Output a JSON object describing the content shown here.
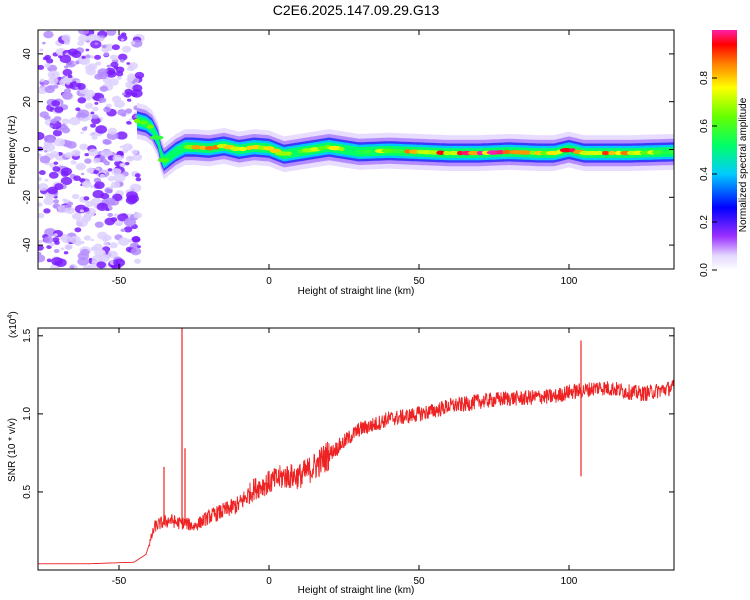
{
  "title": "C2E6.2025.147.09.29.G13",
  "chart_data": [
    {
      "type": "heatmap",
      "xlabel": "Height of straight line (km)",
      "ylabel": "Frequency (Hz)",
      "xlim": [
        -77,
        135
      ],
      "ylim": [
        -50,
        50
      ],
      "xticks": [
        -50,
        0,
        50,
        100
      ],
      "yticks": [
        -40,
        -20,
        0,
        20,
        40
      ],
      "colorbar": {
        "label": "Normalized spectral amplitude",
        "range": [
          0,
          1
        ],
        "ticks": [
          "0.0",
          "0.2",
          "0.4",
          "0.6",
          "0.8"
        ],
        "colors": [
          "#e6e6fa",
          "#9b30ff",
          "#0000ff",
          "#00ffff",
          "#00ff00",
          "#ffff00",
          "#ff0000",
          "#ff00ff"
        ]
      },
      "noise_region_x": [
        -77,
        -43
      ],
      "ridge": {
        "x": [
          -44,
          -41,
          -39,
          -37,
          -36,
          -35,
          -33,
          -31,
          -28,
          -25,
          -20,
          -15,
          -10,
          -5,
          0,
          5,
          10,
          15,
          20,
          30,
          40,
          50,
          60,
          70,
          80,
          90,
          95,
          100,
          105,
          110,
          120,
          135
        ],
        "freq": [
          12,
          11,
          9,
          4,
          -2,
          -5,
          -3,
          -1,
          1,
          1,
          0.5,
          1.5,
          0,
          1,
          0.5,
          -2,
          -1,
          0,
          1,
          -1,
          -0.5,
          -1,
          -1.5,
          -1.5,
          -1,
          -1.5,
          -1.5,
          0,
          -1.5,
          -1.5,
          -1.5,
          -1
        ],
        "amplitude": [
          0.7,
          0.85,
          0.6,
          0.7,
          0.45,
          0.75,
          0.5,
          0.45,
          0.6,
          0.75,
          0.9,
          0.75,
          0.7,
          0.85,
          0.8,
          0.65,
          0.7,
          0.75,
          0.8,
          0.6,
          0.7,
          0.85,
          0.9,
          0.95,
          0.9,
          0.75,
          0.9,
          0.95,
          0.75,
          0.85,
          0.8,
          0.6
        ]
      }
    },
    {
      "type": "line",
      "xlabel": "Height of straight line (km)",
      "ylabel": "SNR (10 * v/v)",
      "y_multiplier": "(x10",
      "y_multiplier_exp": "4",
      "y_multiplier_close": ")",
      "xlim": [
        -77,
        135
      ],
      "ylim": [
        0,
        1.55
      ],
      "xticks": [
        -50,
        0,
        50,
        100
      ],
      "yticks": [
        0.5,
        1.0,
        1.5
      ],
      "ytick_labels": [
        "0.5",
        "1.0",
        "1.5"
      ],
      "color": "#ee2222",
      "x": [
        -77,
        -60,
        -45,
        -41,
        -38,
        -36,
        -33,
        -30,
        -28,
        -25,
        -20,
        -15,
        -10,
        -5,
        0,
        5,
        10,
        15,
        20,
        25,
        30,
        35,
        40,
        45,
        50,
        55,
        60,
        65,
        70,
        75,
        80,
        85,
        90,
        95,
        100,
        105,
        110,
        115,
        120,
        125,
        130,
        135
      ],
      "y": [
        0.04,
        0.04,
        0.05,
        0.1,
        0.28,
        0.3,
        0.32,
        0.3,
        0.3,
        0.28,
        0.34,
        0.38,
        0.42,
        0.52,
        0.56,
        0.6,
        0.6,
        0.66,
        0.74,
        0.82,
        0.9,
        0.93,
        0.97,
        0.98,
        1.0,
        1.02,
        1.05,
        1.06,
        1.08,
        1.09,
        1.1,
        1.1,
        1.11,
        1.11,
        1.14,
        1.15,
        1.17,
        1.16,
        1.14,
        1.13,
        1.15,
        1.17
      ],
      "spikes": [
        {
          "x": -35,
          "y": 0.66
        },
        {
          "x": -29,
          "y": 1.6
        },
        {
          "x": -28,
          "y": 0.78
        },
        {
          "x": 11,
          "y": 0.55
        },
        {
          "x": 74,
          "y": 1.1
        },
        {
          "x": 104,
          "y": 1.47
        },
        {
          "x": 104,
          "y": 0.6
        }
      ]
    }
  ]
}
